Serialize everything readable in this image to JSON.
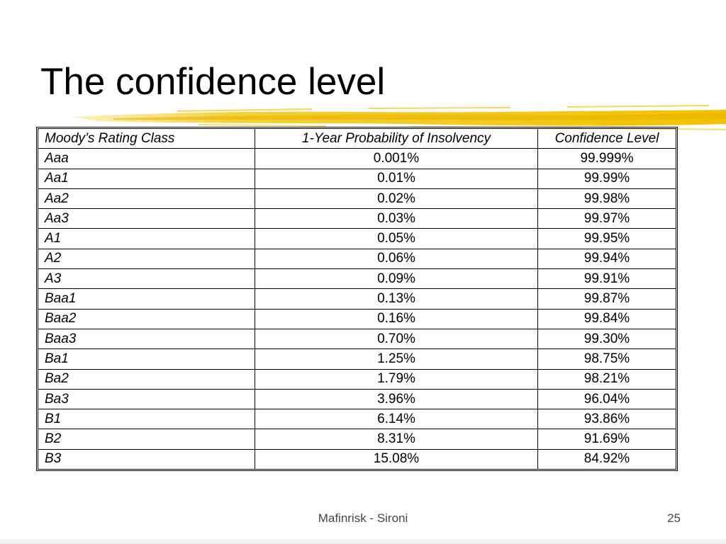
{
  "slide": {
    "title": "The confidence level",
    "footer": "Mafinrisk - Sironi",
    "page_number": "25",
    "accent_color": "#f2c200"
  },
  "table": {
    "headers": [
      "Moody’s Rating Class",
      "1-Year Probability of Insolvency",
      "Confidence Level"
    ],
    "rows": [
      [
        "Aaa",
        "0.001%",
        "99.999%"
      ],
      [
        "Aa1",
        "0.01%",
        "99.99%"
      ],
      [
        "Aa2",
        "0.02%",
        "99.98%"
      ],
      [
        "Aa3",
        "0.03%",
        "99.97%"
      ],
      [
        "A1",
        "0.05%",
        "99.95%"
      ],
      [
        "A2",
        "0.06%",
        "99.94%"
      ],
      [
        "A3",
        "0.09%",
        "99.91%"
      ],
      [
        "Baa1",
        "0.13%",
        "99.87%"
      ],
      [
        "Baa2",
        "0.16%",
        "99.84%"
      ],
      [
        "Baa3",
        "0.70%",
        "99.30%"
      ],
      [
        "Ba1",
        "1.25%",
        "98.75%"
      ],
      [
        "Ba2",
        "1.79%",
        "98.21%"
      ],
      [
        "Ba3",
        "3.96%",
        "96.04%"
      ],
      [
        "B1",
        "6.14%",
        "93.86%"
      ],
      [
        "B2",
        "8.31%",
        "91.69%"
      ],
      [
        "B3",
        "15.08%",
        "84.92%"
      ]
    ]
  }
}
